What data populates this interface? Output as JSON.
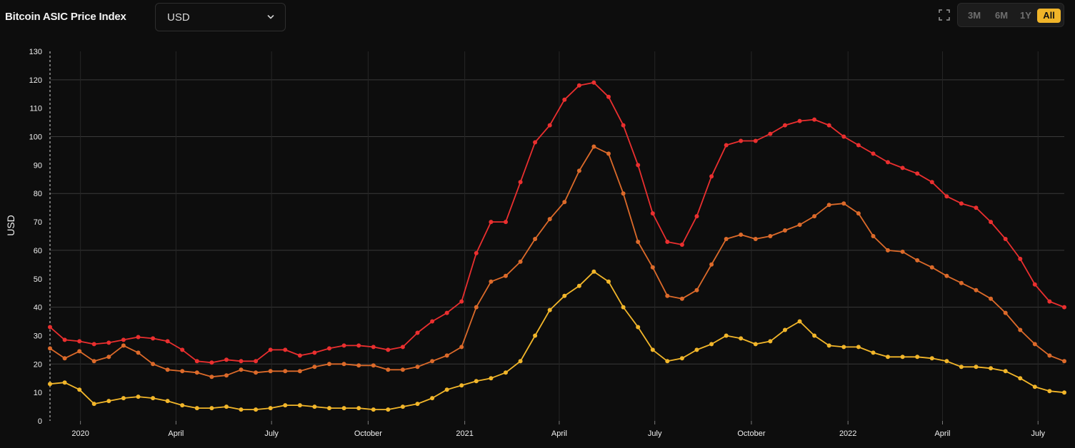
{
  "header": {
    "title": "Bitcoin ASIC Price Index",
    "currency": "USD",
    "ranges": [
      "3M",
      "6M",
      "1Y",
      "All"
    ],
    "active_range": "All"
  },
  "colors": {
    "background": "#0d0d0d",
    "series_high": "#ea2f2f",
    "series_mid": "#dc6a2a",
    "series_low": "#f2b62a",
    "accent": "#f0b429"
  },
  "chart_data": {
    "type": "line",
    "title": "",
    "xlabel": "",
    "ylabel": "USD",
    "ylim": [
      0,
      130
    ],
    "yticks": [
      0,
      10,
      20,
      30,
      40,
      50,
      60,
      70,
      80,
      90,
      100,
      110,
      120,
      130
    ],
    "xlim": [
      "2019-12-03",
      "2022-07-26"
    ],
    "xticks": [
      {
        "date": "2020-01-01",
        "label": "2020"
      },
      {
        "date": "2020-04-01",
        "label": "April"
      },
      {
        "date": "2020-07-01",
        "label": "July"
      },
      {
        "date": "2020-10-01",
        "label": "October"
      },
      {
        "date": "2021-01-01",
        "label": "2021"
      },
      {
        "date": "2021-04-01",
        "label": "April"
      },
      {
        "date": "2021-07-01",
        "label": "July"
      },
      {
        "date": "2021-10-01",
        "label": "October"
      },
      {
        "date": "2022-01-01",
        "label": "2022"
      },
      {
        "date": "2022-04-01",
        "label": "April"
      },
      {
        "date": "2022-07-01",
        "label": "July"
      }
    ],
    "grid": true,
    "legend": "none",
    "series": [
      {
        "color": "#ea2f2f",
        "points": [
          [
            "2019-12-03",
            33
          ],
          [
            "2019-12-17",
            28.5
          ],
          [
            "2019-12-31",
            28
          ],
          [
            "2020-01-14",
            27
          ],
          [
            "2020-01-28",
            27.5
          ],
          [
            "2020-02-11",
            28.5
          ],
          [
            "2020-02-25",
            29.5
          ],
          [
            "2020-03-10",
            29
          ],
          [
            "2020-03-24",
            28
          ],
          [
            "2020-04-07",
            25
          ],
          [
            "2020-04-21",
            21
          ],
          [
            "2020-05-05",
            20.5
          ],
          [
            "2020-05-19",
            21.5
          ],
          [
            "2020-06-02",
            21
          ],
          [
            "2020-06-16",
            21
          ],
          [
            "2020-06-30",
            25
          ],
          [
            "2020-07-14",
            25
          ],
          [
            "2020-07-28",
            23
          ],
          [
            "2020-08-11",
            24
          ],
          [
            "2020-08-25",
            25.5
          ],
          [
            "2020-09-08",
            26.5
          ],
          [
            "2020-09-22",
            26.5
          ],
          [
            "2020-10-06",
            26
          ],
          [
            "2020-10-20",
            25
          ],
          [
            "2020-11-03",
            26
          ],
          [
            "2020-11-17",
            31
          ],
          [
            "2020-12-01",
            35
          ],
          [
            "2020-12-15",
            38
          ],
          [
            "2020-12-29",
            42
          ],
          [
            "2021-01-12",
            59
          ],
          [
            "2021-01-26",
            70
          ],
          [
            "2021-02-09",
            70
          ],
          [
            "2021-02-23",
            84
          ],
          [
            "2021-03-09",
            98
          ],
          [
            "2021-03-23",
            104
          ],
          [
            "2021-04-06",
            113
          ],
          [
            "2021-04-20",
            118
          ],
          [
            "2021-05-04",
            119
          ],
          [
            "2021-05-18",
            114
          ],
          [
            "2021-06-01",
            104
          ],
          [
            "2021-06-15",
            90
          ],
          [
            "2021-06-29",
            73
          ],
          [
            "2021-07-13",
            63
          ],
          [
            "2021-07-27",
            62
          ],
          [
            "2021-08-10",
            72
          ],
          [
            "2021-08-24",
            86
          ],
          [
            "2021-09-07",
            97
          ],
          [
            "2021-09-21",
            98.5
          ],
          [
            "2021-10-05",
            98.5
          ],
          [
            "2021-10-19",
            101
          ],
          [
            "2021-11-02",
            104
          ],
          [
            "2021-11-16",
            105.5
          ],
          [
            "2021-11-30",
            106
          ],
          [
            "2021-12-14",
            104
          ],
          [
            "2021-12-28",
            100
          ],
          [
            "2022-01-11",
            97
          ],
          [
            "2022-01-25",
            94
          ],
          [
            "2022-02-08",
            91
          ],
          [
            "2022-02-22",
            89
          ],
          [
            "2022-03-08",
            87
          ],
          [
            "2022-03-22",
            84
          ],
          [
            "2022-04-05",
            79
          ],
          [
            "2022-04-19",
            76.5
          ],
          [
            "2022-05-03",
            75
          ],
          [
            "2022-05-17",
            70
          ],
          [
            "2022-05-31",
            64
          ],
          [
            "2022-06-14",
            57
          ],
          [
            "2022-06-28",
            48
          ],
          [
            "2022-07-12",
            42
          ],
          [
            "2022-07-26",
            40
          ]
        ]
      },
      {
        "color": "#dc6a2a",
        "points": [
          [
            "2019-12-03",
            25.5
          ],
          [
            "2019-12-17",
            22
          ],
          [
            "2019-12-31",
            24.5
          ],
          [
            "2020-01-14",
            21
          ],
          [
            "2020-01-28",
            22.5
          ],
          [
            "2020-02-11",
            26.5
          ],
          [
            "2020-02-25",
            24
          ],
          [
            "2020-03-10",
            20
          ],
          [
            "2020-03-24",
            18
          ],
          [
            "2020-04-07",
            17.5
          ],
          [
            "2020-04-21",
            17
          ],
          [
            "2020-05-05",
            15.5
          ],
          [
            "2020-05-19",
            16
          ],
          [
            "2020-06-02",
            18
          ],
          [
            "2020-06-16",
            17
          ],
          [
            "2020-06-30",
            17.5
          ],
          [
            "2020-07-14",
            17.5
          ],
          [
            "2020-07-28",
            17.5
          ],
          [
            "2020-08-11",
            19
          ],
          [
            "2020-08-25",
            20
          ],
          [
            "2020-09-08",
            20
          ],
          [
            "2020-09-22",
            19.5
          ],
          [
            "2020-10-06",
            19.5
          ],
          [
            "2020-10-20",
            18
          ],
          [
            "2020-11-03",
            18
          ],
          [
            "2020-11-17",
            19
          ],
          [
            "2020-12-01",
            21
          ],
          [
            "2020-12-15",
            23
          ],
          [
            "2020-12-29",
            26
          ],
          [
            "2021-01-12",
            40
          ],
          [
            "2021-01-26",
            49
          ],
          [
            "2021-02-09",
            51
          ],
          [
            "2021-02-23",
            56
          ],
          [
            "2021-03-09",
            64
          ],
          [
            "2021-03-23",
            71
          ],
          [
            "2021-04-06",
            77
          ],
          [
            "2021-04-20",
            88
          ],
          [
            "2021-05-04",
            96.5
          ],
          [
            "2021-05-18",
            94
          ],
          [
            "2021-06-01",
            80
          ],
          [
            "2021-06-15",
            63
          ],
          [
            "2021-06-29",
            54
          ],
          [
            "2021-07-13",
            44
          ],
          [
            "2021-07-27",
            43
          ],
          [
            "2021-08-10",
            46
          ],
          [
            "2021-08-24",
            55
          ],
          [
            "2021-09-07",
            64
          ],
          [
            "2021-09-21",
            65.5
          ],
          [
            "2021-10-05",
            64
          ],
          [
            "2021-10-19",
            65
          ],
          [
            "2021-11-02",
            67
          ],
          [
            "2021-11-16",
            69
          ],
          [
            "2021-11-30",
            72
          ],
          [
            "2021-12-14",
            76
          ],
          [
            "2021-12-28",
            76.5
          ],
          [
            "2022-01-11",
            73
          ],
          [
            "2022-01-25",
            65
          ],
          [
            "2022-02-08",
            60
          ],
          [
            "2022-02-22",
            59.5
          ],
          [
            "2022-03-08",
            56.5
          ],
          [
            "2022-03-22",
            54
          ],
          [
            "2022-04-05",
            51
          ],
          [
            "2022-04-19",
            48.5
          ],
          [
            "2022-05-03",
            46
          ],
          [
            "2022-05-17",
            43
          ],
          [
            "2022-05-31",
            38
          ],
          [
            "2022-06-14",
            32
          ],
          [
            "2022-06-28",
            27
          ],
          [
            "2022-07-12",
            23
          ],
          [
            "2022-07-26",
            21
          ]
        ]
      },
      {
        "color": "#f2b62a",
        "points": [
          [
            "2019-12-03",
            13
          ],
          [
            "2019-12-17",
            13.5
          ],
          [
            "2019-12-31",
            11
          ],
          [
            "2020-01-14",
            6
          ],
          [
            "2020-01-28",
            7
          ],
          [
            "2020-02-11",
            8
          ],
          [
            "2020-02-25",
            8.5
          ],
          [
            "2020-03-10",
            8
          ],
          [
            "2020-03-24",
            7
          ],
          [
            "2020-04-07",
            5.5
          ],
          [
            "2020-04-21",
            4.5
          ],
          [
            "2020-05-05",
            4.5
          ],
          [
            "2020-05-19",
            5
          ],
          [
            "2020-06-02",
            4
          ],
          [
            "2020-06-16",
            4
          ],
          [
            "2020-06-30",
            4.5
          ],
          [
            "2020-07-14",
            5.5
          ],
          [
            "2020-07-28",
            5.5
          ],
          [
            "2020-08-11",
            5
          ],
          [
            "2020-08-25",
            4.5
          ],
          [
            "2020-09-08",
            4.5
          ],
          [
            "2020-09-22",
            4.5
          ],
          [
            "2020-10-06",
            4
          ],
          [
            "2020-10-20",
            4
          ],
          [
            "2020-11-03",
            5
          ],
          [
            "2020-11-17",
            6
          ],
          [
            "2020-12-01",
            8
          ],
          [
            "2020-12-15",
            11
          ],
          [
            "2020-12-29",
            12.5
          ],
          [
            "2021-01-12",
            14
          ],
          [
            "2021-01-26",
            15
          ],
          [
            "2021-02-09",
            17
          ],
          [
            "2021-02-23",
            21
          ],
          [
            "2021-03-09",
            30
          ],
          [
            "2021-03-23",
            39
          ],
          [
            "2021-04-06",
            44
          ],
          [
            "2021-04-20",
            47.5
          ],
          [
            "2021-05-04",
            52.5
          ],
          [
            "2021-05-18",
            49
          ],
          [
            "2021-06-01",
            40
          ],
          [
            "2021-06-15",
            33
          ],
          [
            "2021-06-29",
            25
          ],
          [
            "2021-07-13",
            21
          ],
          [
            "2021-07-27",
            22
          ],
          [
            "2021-08-10",
            25
          ],
          [
            "2021-08-24",
            27
          ],
          [
            "2021-09-07",
            30
          ],
          [
            "2021-09-21",
            29
          ],
          [
            "2021-10-05",
            27
          ],
          [
            "2021-10-19",
            28
          ],
          [
            "2021-11-02",
            32
          ],
          [
            "2021-11-16",
            35
          ],
          [
            "2021-11-30",
            30
          ],
          [
            "2021-12-14",
            26.5
          ],
          [
            "2021-12-28",
            26
          ],
          [
            "2022-01-11",
            26
          ],
          [
            "2022-01-25",
            24
          ],
          [
            "2022-02-08",
            22.5
          ],
          [
            "2022-02-22",
            22.5
          ],
          [
            "2022-03-08",
            22.5
          ],
          [
            "2022-03-22",
            22
          ],
          [
            "2022-04-05",
            21
          ],
          [
            "2022-04-19",
            19
          ],
          [
            "2022-05-03",
            19
          ],
          [
            "2022-05-17",
            18.5
          ],
          [
            "2022-05-31",
            17.5
          ],
          [
            "2022-06-14",
            15
          ],
          [
            "2022-06-28",
            12
          ],
          [
            "2022-07-12",
            10.5
          ],
          [
            "2022-07-26",
            10
          ]
        ]
      }
    ]
  }
}
